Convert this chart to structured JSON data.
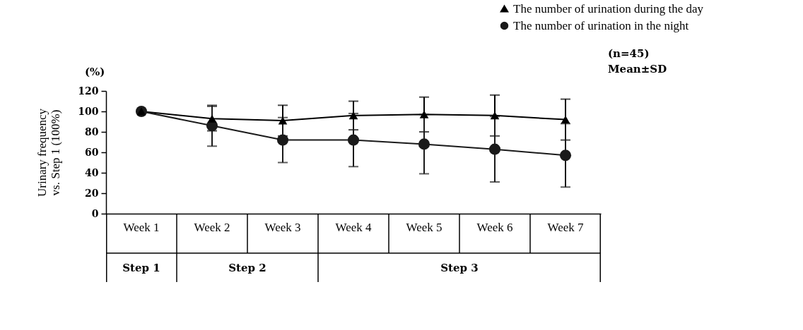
{
  "chart_data": {
    "type": "line",
    "ylabel": "Urinary frequency\nvs. Step 1 (100%)",
    "categories": [
      "Week 1",
      "Week 2",
      "Week 3",
      "Week 4",
      "Week 5",
      "Week 6",
      "Week 7"
    ],
    "series": [
      {
        "name": "The number of urination during the day",
        "color": "#000000",
        "marker": "triangle",
        "values": [
          100,
          93,
          91,
          96,
          97,
          96,
          92
        ],
        "errors": [
          null,
          12,
          15,
          14,
          17,
          20,
          20
        ]
      },
      {
        "name": "The number of urination in the night",
        "color": "#1a1a1a",
        "marker": "circle",
        "values": [
          100,
          86,
          72,
          72,
          68,
          63,
          57
        ],
        "errors": [
          null,
          20,
          22,
          26,
          29,
          32,
          31
        ]
      }
    ],
    "ylim": [
      0,
      120
    ],
    "yticks": [
      0,
      20,
      40,
      60,
      80,
      100,
      120
    ],
    "legend": "top right",
    "annotations": [
      "(%)",
      "(n=45)",
      "Mean±SD",
      "Step 1",
      "Step 2",
      "Step 3"
    ]
  }
}
